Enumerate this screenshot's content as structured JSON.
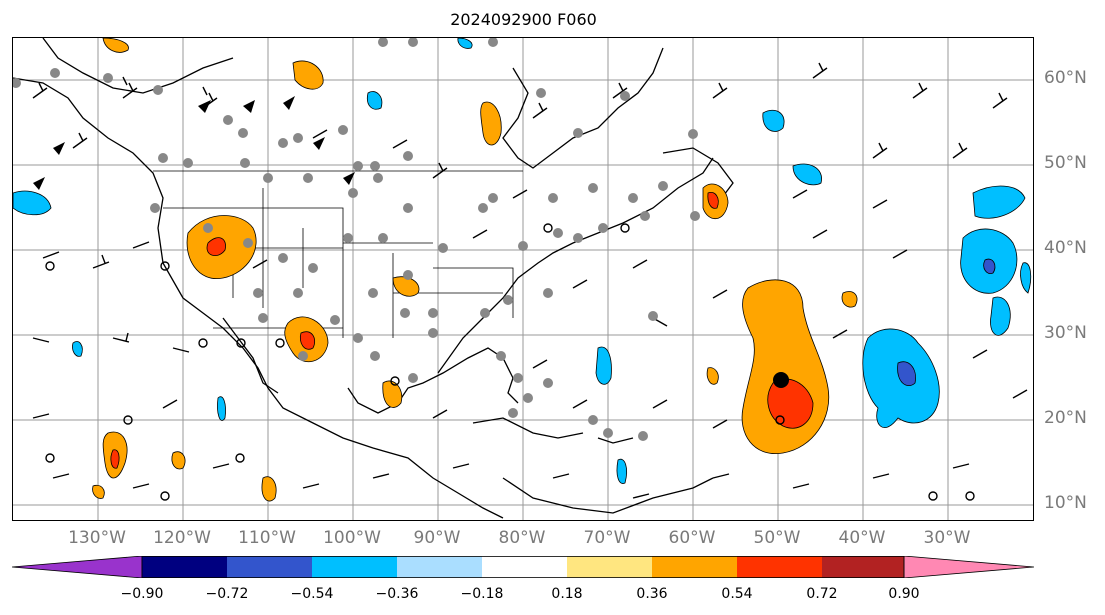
{
  "title": "2024092900 F060",
  "lat_labels": [
    "60°N",
    "50°N",
    "40°N",
    "30°N",
    "20°N",
    "10°N"
  ],
  "lon_labels": [
    "130°W",
    "120°W",
    "110°W",
    "100°W",
    "90°W",
    "80°W",
    "70°W",
    "60°W",
    "50°W",
    "40°W",
    "30°W"
  ],
  "colorbar": {
    "colors": [
      "#9933cc",
      "#000080",
      "#3355cc",
      "#00bfff",
      "#aadeff",
      "#ffffff",
      "#ffe680",
      "#ffa500",
      "#ff3300",
      "#b22222",
      "#ff88b3"
    ],
    "ticks": [
      "−0.90",
      "−0.72",
      "−0.54",
      "−0.36",
      "−0.18",
      "0.18",
      "0.36",
      "0.54",
      "0.72",
      "0.90"
    ]
  },
  "colors": {
    "positive_fill": "#ffa500",
    "strong_positive_fill": "#ff3300",
    "negative_fill": "#00bfff",
    "strong_negative_fill": "#3355cc",
    "station_marker": "#888888",
    "grid": "#999999"
  }
}
